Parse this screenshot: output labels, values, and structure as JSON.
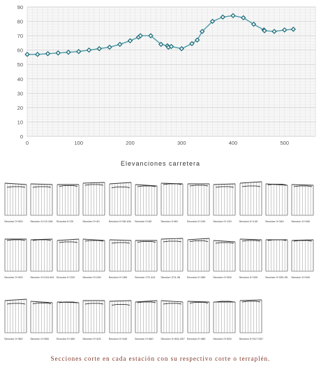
{
  "chart_data": {
    "type": "line",
    "x": [
      0,
      20,
      40,
      60,
      80,
      100,
      120,
      140,
      160,
      180,
      200,
      216.441,
      220,
      240,
      260,
      272.441,
      274.36,
      280,
      300,
      320,
      330.39,
      340,
      360,
      380,
      400,
      420,
      440,
      460,
      461.057,
      480,
      500,
      517.057
    ],
    "series": [
      {
        "values": [
          57,
          57,
          57.5,
          58,
          58.5,
          59,
          60,
          61,
          62,
          64,
          66.5,
          69,
          70,
          70,
          64,
          63,
          62,
          62.5,
          61,
          64.5,
          67,
          73,
          80,
          83,
          84,
          82.5,
          78,
          74,
          73.5,
          73,
          74,
          74.5
        ]
      }
    ],
    "xlim": [
      0,
      560
    ],
    "ylim": [
      0,
      90
    ],
    "xticks": [
      0,
      100,
      200,
      300,
      400,
      500
    ],
    "yticks": [
      0,
      10,
      20,
      30,
      40,
      50,
      60,
      70,
      80,
      90
    ],
    "grid": true,
    "line_color": "#4a9aa6",
    "marker_color": "#1f6e7a"
  },
  "chart_caption": "Elevanciones carretera",
  "sections": {
    "items": [
      {
        "label": "Seccion 0+000"
      },
      {
        "label": "Seccion 0+13.106"
      },
      {
        "label": "Seccion 0+20"
      },
      {
        "label": "Seccion 0+40"
      },
      {
        "label": "Seccion 0+58.106"
      },
      {
        "label": "Seccion 0+60"
      },
      {
        "label": "Seccion 0+80"
      },
      {
        "label": "Seccion 0+100"
      },
      {
        "label": "Seccion 0+120"
      },
      {
        "label": "Seccion 0+140"
      },
      {
        "label": "Seccion 0+160"
      },
      {
        "label": "Seccion 0+180"
      },
      {
        "label": "Seccion 0+200"
      },
      {
        "label": "Seccion 0+216.441"
      },
      {
        "label": "Seccion 0+220"
      },
      {
        "label": "Seccion 0+240"
      },
      {
        "label": "Seccion 0+260"
      },
      {
        "label": "Seccion 272.441"
      },
      {
        "label": "Seccion 274.36"
      },
      {
        "label": "Seccion 0+280"
      },
      {
        "label": "Seccion 0+300"
      },
      {
        "label": "Seccion 0+320"
      },
      {
        "label": "Seccion 0+330.39"
      },
      {
        "label": "Seccion 0+340"
      },
      {
        "label": "Seccion 0+360"
      },
      {
        "label": "Seccion 0+380"
      },
      {
        "label": "Seccion 0+400"
      },
      {
        "label": "Seccion 0+420"
      },
      {
        "label": "Seccion 0+440"
      },
      {
        "label": "Seccion 0+460"
      },
      {
        "label": "Seccion 0+461.057"
      },
      {
        "label": "Seccion 0+480"
      },
      {
        "label": "Seccion 0+500"
      },
      {
        "label": "Seccion 0+517.057"
      }
    ],
    "caption": "Secciones corte en cada estación con su respectivo corte o terraplén."
  }
}
